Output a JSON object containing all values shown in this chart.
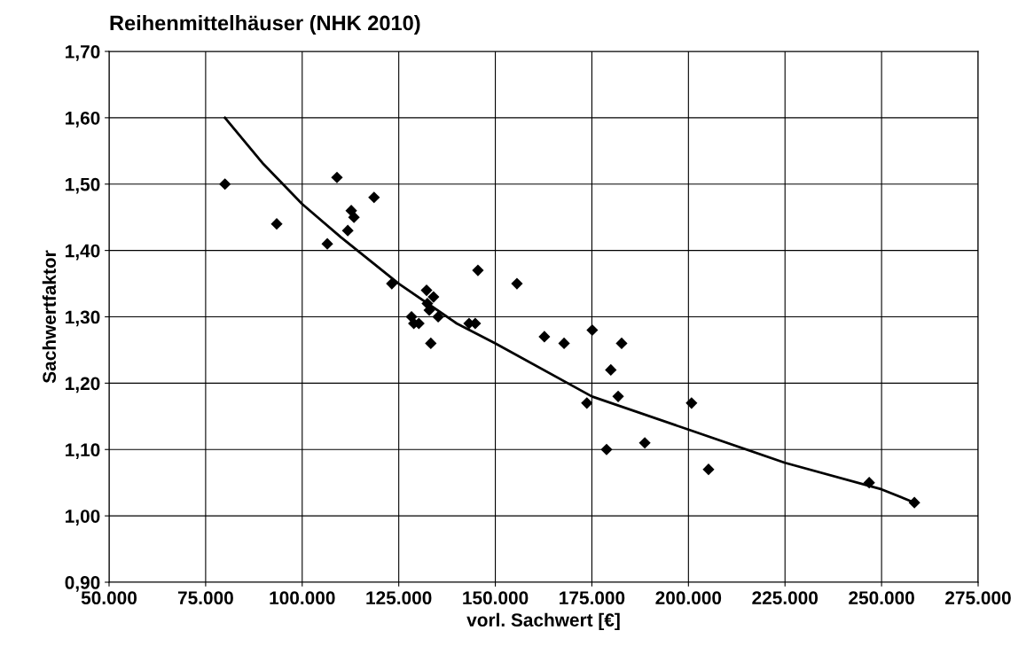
{
  "chart_data": {
    "type": "scatter",
    "title": "Reihenmittelhäuser (NHK 2010)",
    "xlabel": "vorl. Sachwert [€]",
    "ylabel": "Sachwertfaktor",
    "series": [
      {
        "color": "#000000",
        "marker": "diamond",
        "x": [
          80000,
          93400,
          106500,
          109000,
          111800,
          112700,
          113400,
          118600,
          123200,
          128300,
          128900,
          130200,
          132200,
          132400,
          132900,
          133300,
          134000,
          135200,
          143200,
          144800,
          145500,
          155600,
          162700,
          167800,
          173700,
          175100,
          178800,
          179900,
          181800,
          182700,
          188700,
          200800,
          205200,
          246800,
          258500
        ],
        "values": [
          1.5,
          1.44,
          1.41,
          1.51,
          1.43,
          1.46,
          1.45,
          1.48,
          1.35,
          1.3,
          1.29,
          1.29,
          1.34,
          1.32,
          1.31,
          1.26,
          1.33,
          1.3,
          1.29,
          1.29,
          1.37,
          1.35,
          1.27,
          1.26,
          1.17,
          1.28,
          1.1,
          1.22,
          1.18,
          1.26,
          1.11,
          1.17,
          1.07,
          1.05,
          1.02
        ]
      },
      {
        "type": "line",
        "color": "#000000",
        "marker": "none",
        "x": [
          80000,
          90000,
          100000,
          110000,
          125000,
          140000,
          150000,
          175000,
          200000,
          225000,
          250000,
          258500
        ],
        "values": [
          1.6,
          1.53,
          1.47,
          1.42,
          1.35,
          1.29,
          1.26,
          1.18,
          1.13,
          1.08,
          1.04,
          1.02
        ]
      }
    ],
    "xlim": [
      50000,
      275000
    ],
    "xticks": [
      {
        "value": 50000,
        "label": "50.000"
      },
      {
        "value": 75000,
        "label": "75.000"
      },
      {
        "value": 100000,
        "label": "100.000"
      },
      {
        "value": 125000,
        "label": "125.000"
      },
      {
        "value": 150000,
        "label": "150.000"
      },
      {
        "value": 175000,
        "label": "175.000"
      },
      {
        "value": 200000,
        "label": "200.000"
      },
      {
        "value": 225000,
        "label": "225.000"
      },
      {
        "value": 250000,
        "label": "250.000"
      },
      {
        "value": 275000,
        "label": "275.000"
      }
    ],
    "ylim": [
      0.9,
      1.7
    ],
    "yticks": [
      {
        "value": 0.9,
        "label": "0,90"
      },
      {
        "value": 1.0,
        "label": "1,00"
      },
      {
        "value": 1.1,
        "label": "1,10"
      },
      {
        "value": 1.2,
        "label": "1,20"
      },
      {
        "value": 1.3,
        "label": "1,30"
      },
      {
        "value": 1.4,
        "label": "1,40"
      },
      {
        "value": 1.5,
        "label": "1,50"
      },
      {
        "value": 1.6,
        "label": "1,60"
      },
      {
        "value": 1.7,
        "label": "1,70"
      }
    ],
    "grid": true,
    "legend": false
  }
}
